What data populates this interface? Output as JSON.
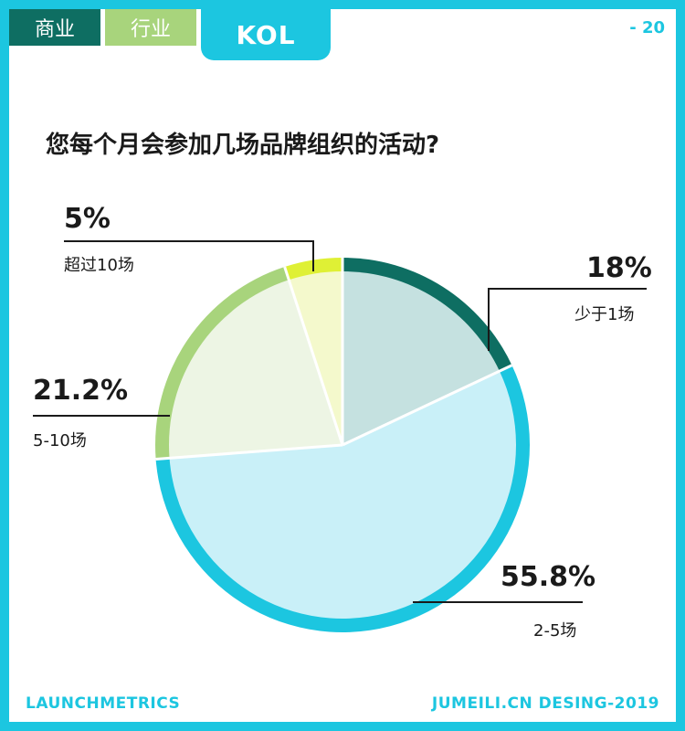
{
  "header": {
    "tabs": [
      {
        "label": "商业",
        "color": "#0e6e62"
      },
      {
        "label": "行业",
        "color": "#a8d47c"
      },
      {
        "label": "KOL",
        "color": "#1cc6e0"
      }
    ],
    "page_number": "- 20"
  },
  "footer": {
    "left": "LAUNCHMETRICS",
    "right": "JUMEILI.CN DESING-2019"
  },
  "chart_data": {
    "type": "pie",
    "title": "您每个月会参加几场品牌组织的活动?",
    "slices": [
      {
        "label": "少于1场",
        "value": 18,
        "display": "18%",
        "ring_color": "#0e6e62",
        "fill_color": "#c5e1e0"
      },
      {
        "label": "2-5场",
        "value": 55.8,
        "display": "55.8%",
        "ring_color": "#1cc6e0",
        "fill_color": "#c9f0f8"
      },
      {
        "label": "5-10场",
        "value": 21.2,
        "display": "21.2%",
        "ring_color": "#a8d47c",
        "fill_color": "#edf5e4"
      },
      {
        "label": "超过10场",
        "value": 5,
        "display": "5%",
        "ring_color": "#dff035",
        "fill_color": "#f4f9cc"
      }
    ],
    "start": "12 o'clock",
    "direction": "clockwise"
  }
}
